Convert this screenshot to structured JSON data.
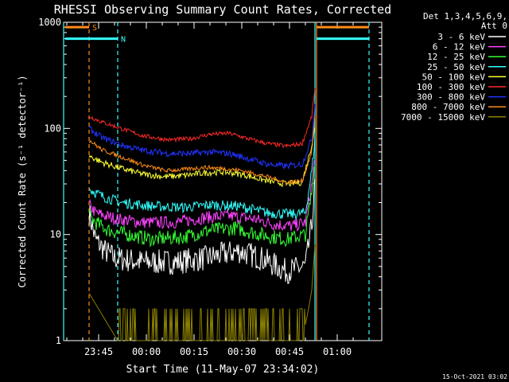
{
  "chart_data": {
    "type": "line",
    "title": "RHESSI Observing Summary Count Rates, Corrected",
    "xlabel": "Start Time (11-May-07 23:34:02)",
    "ylabel": "Corrected Count Rate (s⁻¹ detector⁻¹)",
    "y_scale": "log",
    "ylim": [
      1,
      1000
    ],
    "xlim_minutes_from_start": [
      0,
      100
    ],
    "x_tick_labels": [
      "23:45",
      "00:00",
      "00:15",
      "00:30",
      "00:45",
      "01:00"
    ],
    "x_tick_minutes": [
      11,
      26,
      41,
      56,
      71,
      86
    ],
    "y_tick_labels": [
      "1",
      "10",
      "100",
      "1000"
    ],
    "y_tick_values": [
      1,
      10,
      100,
      1000
    ],
    "legend_header_1": "Det 1,3,4,5,6,9,",
    "legend_header_2": "Att 0",
    "legend_placement": "right",
    "footer_date": "15-Oct-2021 03:02",
    "flags": [
      {
        "label": "S",
        "color": "#ff8c1a",
        "value": 900,
        "segments_minutes": [
          [
            0,
            8
          ],
          [
            79,
            96
          ]
        ]
      },
      {
        "label": "N",
        "color": "#33ffff",
        "value": 700,
        "segments_minutes": [
          [
            0,
            17
          ],
          [
            79,
            96
          ]
        ]
      }
    ],
    "vertical_markers": [
      {
        "minute": 8,
        "color": "#ff8c1a",
        "style": "dashed"
      },
      {
        "minute": 17,
        "color": "#33ffff",
        "style": "dashed"
      },
      {
        "minute": 0,
        "color": "#33ffff",
        "style": "solid"
      },
      {
        "minute": 79,
        "color": "#33ffff",
        "style": "solid"
      },
      {
        "minute": 79.5,
        "color": "#ff8c1a",
        "style": "solid"
      },
      {
        "minute": 96,
        "color": "#33ffff",
        "style": "dashed"
      }
    ],
    "series": [
      {
        "name": "3 - 6 keV",
        "color": "#ffffff",
        "noise": 0.12,
        "points": [
          [
            8,
            16
          ],
          [
            10,
            9
          ],
          [
            13,
            7
          ],
          [
            16,
            6
          ],
          [
            25,
            5.5
          ],
          [
            35,
            5.5
          ],
          [
            45,
            6
          ],
          [
            55,
            7
          ],
          [
            62,
            6
          ],
          [
            70,
            4.5
          ],
          [
            76,
            5
          ],
          [
            78,
            12
          ],
          [
            79,
            30
          ]
        ]
      },
      {
        "name": "6 - 12 keV",
        "color": "#ff44ff",
        "noise": 0.06,
        "points": [
          [
            8,
            19
          ],
          [
            10,
            16
          ],
          [
            13,
            15
          ],
          [
            17,
            14
          ],
          [
            25,
            13
          ],
          [
            35,
            13
          ],
          [
            45,
            14.5
          ],
          [
            52,
            15
          ],
          [
            60,
            14
          ],
          [
            66,
            12.5
          ],
          [
            72,
            12
          ],
          [
            76,
            13
          ],
          [
            78,
            30
          ],
          [
            79,
            55
          ]
        ]
      },
      {
        "name": "12 - 25 keV",
        "color": "#33ff33",
        "noise": 0.07,
        "points": [
          [
            8,
            15
          ],
          [
            10,
            13
          ],
          [
            14,
            11
          ],
          [
            20,
            10
          ],
          [
            28,
            9
          ],
          [
            38,
            9.5
          ],
          [
            46,
            11
          ],
          [
            54,
            11.5
          ],
          [
            62,
            10
          ],
          [
            70,
            9
          ],
          [
            76,
            10
          ],
          [
            78,
            25
          ],
          [
            79,
            50
          ]
        ]
      },
      {
        "name": "25 - 50 keV",
        "color": "#33ffff",
        "noise": 0.05,
        "points": [
          [
            8,
            27
          ],
          [
            12,
            23
          ],
          [
            18,
            20
          ],
          [
            28,
            18.5
          ],
          [
            38,
            18
          ],
          [
            46,
            19
          ],
          [
            55,
            18.5
          ],
          [
            64,
            16
          ],
          [
            72,
            15.5
          ],
          [
            76,
            16
          ],
          [
            78,
            40
          ],
          [
            79,
            80
          ]
        ]
      },
      {
        "name": "50 - 100 keV",
        "color": "#ffff33",
        "noise": 0.03,
        "points": [
          [
            8,
            55
          ],
          [
            12,
            48
          ],
          [
            18,
            42
          ],
          [
            25,
            37
          ],
          [
            32,
            35
          ],
          [
            38,
            36
          ],
          [
            44,
            38
          ],
          [
            50,
            39
          ],
          [
            56,
            37
          ],
          [
            64,
            32
          ],
          [
            70,
            30
          ],
          [
            75,
            31
          ],
          [
            78,
            70
          ],
          [
            79,
            100
          ]
        ]
      },
      {
        "name": "100 - 300 keV",
        "color": "#ff2a2a",
        "noise": 0.02,
        "points": [
          [
            8,
            130
          ],
          [
            12,
            115
          ],
          [
            18,
            100
          ],
          [
            25,
            85
          ],
          [
            33,
            78
          ],
          [
            40,
            80
          ],
          [
            46,
            88
          ],
          [
            52,
            90
          ],
          [
            58,
            80
          ],
          [
            64,
            72
          ],
          [
            70,
            68
          ],
          [
            75,
            72
          ],
          [
            78,
            130
          ],
          [
            79,
            240
          ]
        ]
      },
      {
        "name": "300 - 800 keV",
        "color": "#2233ff",
        "noise": 0.03,
        "points": [
          [
            8,
            100
          ],
          [
            12,
            82
          ],
          [
            18,
            70
          ],
          [
            25,
            62
          ],
          [
            33,
            58
          ],
          [
            40,
            58
          ],
          [
            46,
            60
          ],
          [
            52,
            58
          ],
          [
            58,
            52
          ],
          [
            64,
            46
          ],
          [
            70,
            44
          ],
          [
            75,
            46
          ],
          [
            78,
            80
          ],
          [
            79,
            170
          ]
        ]
      },
      {
        "name": "800 - 7000 keV",
        "color": "#ff8c1a",
        "noise": 0.02,
        "points": [
          [
            8,
            78
          ],
          [
            12,
            63
          ],
          [
            18,
            54
          ],
          [
            25,
            45
          ],
          [
            32,
            40
          ],
          [
            38,
            41
          ],
          [
            44,
            43
          ],
          [
            50,
            42
          ],
          [
            56,
            40
          ],
          [
            64,
            35
          ],
          [
            70,
            31
          ],
          [
            75,
            32
          ],
          [
            78,
            60
          ],
          [
            79,
            130
          ]
        ]
      },
      {
        "name": "7000 - 15000 keV",
        "color": "#8a7f00",
        "noise": 0,
        "points": [
          [
            8,
            2.8
          ],
          [
            17,
            1
          ],
          [
            60,
            1
          ],
          [
            75,
            1
          ],
          [
            77,
            2
          ],
          [
            78,
            3
          ],
          [
            79,
            8
          ]
        ]
      }
    ]
  }
}
